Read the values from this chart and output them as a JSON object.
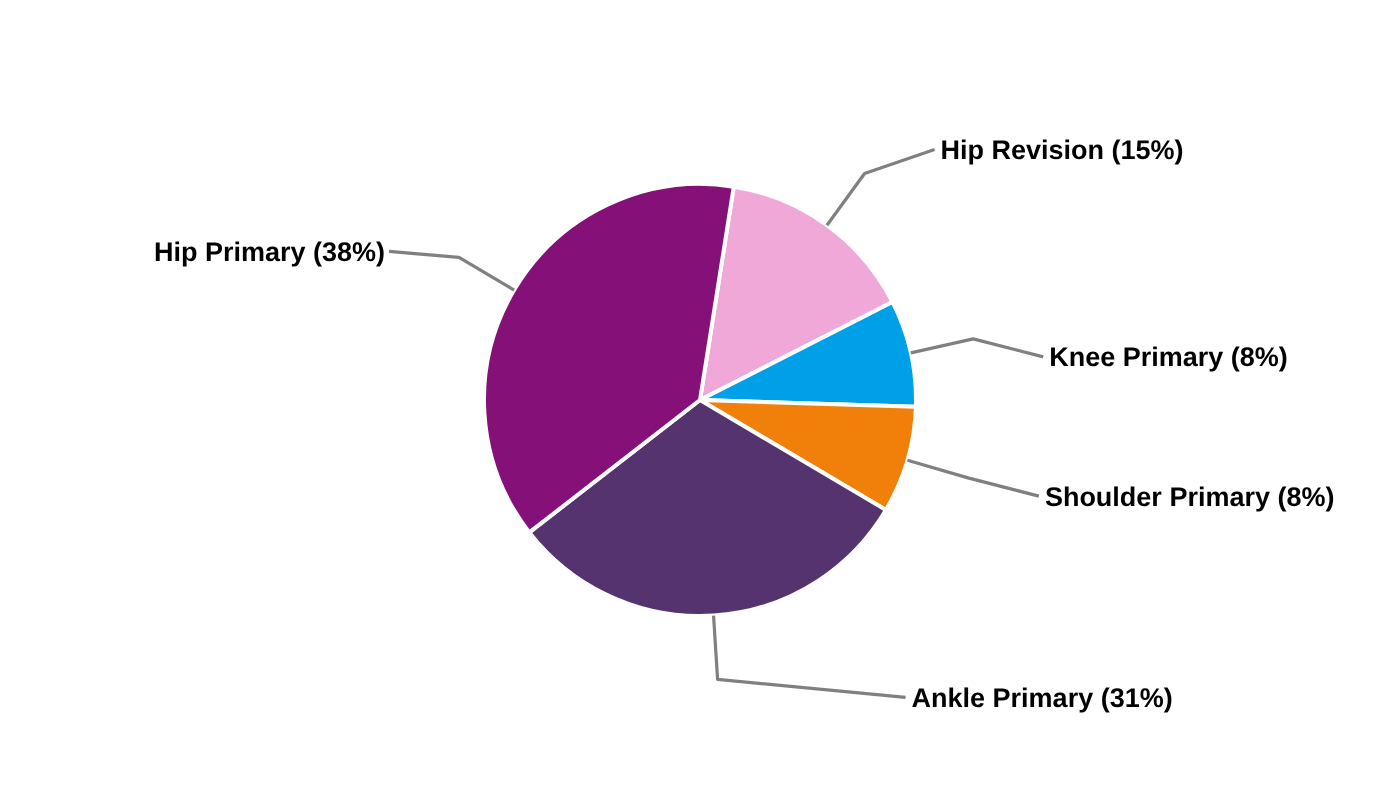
{
  "chart_data": {
    "type": "pie",
    "categories": [
      "Hip Revision",
      "Knee Primary",
      "Shoulder Primary",
      "Ankle Primary",
      "Hip Primary"
    ],
    "values": [
      15,
      8,
      8,
      31,
      38
    ],
    "value_labels": [
      "(15%)",
      "(8%)",
      "(8%)",
      "(31%)",
      "(38%)"
    ],
    "colors": [
      "#f0a8d8",
      "#00a0e8",
      "#f0800a",
      "#55336f",
      "#851077"
    ]
  }
}
